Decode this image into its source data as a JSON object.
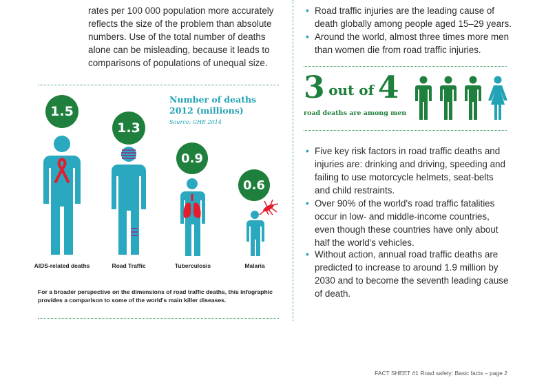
{
  "intro_paragraph": [
    "rates per 100 000 population more accurately",
    "reflects the size of the problem than absolute",
    "numbers. Use of the total number of deaths",
    "alone can be misleading, because it leads to",
    "comparisons of populations of unequal size."
  ],
  "top_bullets": [
    [
      "Road traffic injuries are the leading cause of",
      "death globally among people aged 15–29 years."
    ],
    [
      "Around the world, almost three times more men",
      "than women die from road traffic injuries."
    ]
  ],
  "infographic": {
    "title_line1": "Number of deaths",
    "title_line2": "2012 (millions)",
    "source": "Source: GHE 2014",
    "items": [
      {
        "label": "AIDS-related deaths",
        "value": "1.5",
        "icon": "ribbon-icon"
      },
      {
        "label": "Road Traffic",
        "value": "1.3",
        "icon": "bandage-icon"
      },
      {
        "label": "Tuberculosis",
        "value": "0.9",
        "icon": "lungs-icon"
      },
      {
        "label": "Malaria",
        "value": "0.6",
        "icon": "mosquito-icon"
      }
    ],
    "footnote_line1": "For a broader perspective on the dimensions of road traffic deaths, this infographic",
    "footnote_line2": "provides a comparison to some of the world's main killer diseases."
  },
  "men_stat": {
    "numerator": "3",
    "out_of": "out of",
    "denominator": "4",
    "caption": "road deaths are among men"
  },
  "bottom_bullets": [
    [
      "Five key risk factors in road traffic deaths and",
      "injuries are: drinking and driving, speeding and",
      "failing to use motorcycle helmets, seat-belts",
      "and child restraints."
    ],
    [
      "Over 90% of the world's road traffic fatalities",
      "occur in low- and middle-income countries,",
      "even though these countries have only about",
      "half the world's vehicles."
    ],
    [
      "Without action, annual road traffic deaths are",
      "predicted to increase to around 1.9 million by",
      "2030 and to become the seventh leading cause",
      "of death."
    ]
  ],
  "footer": "FACT SHEET #1 Road safety: Basic facts – page 2",
  "colors": {
    "accent_green": "#1f7f3c",
    "teal": "#23a7b8",
    "figure_teal": "#2aa8bf",
    "title_teal": "#21a3b5",
    "red": "#e31d2c"
  }
}
